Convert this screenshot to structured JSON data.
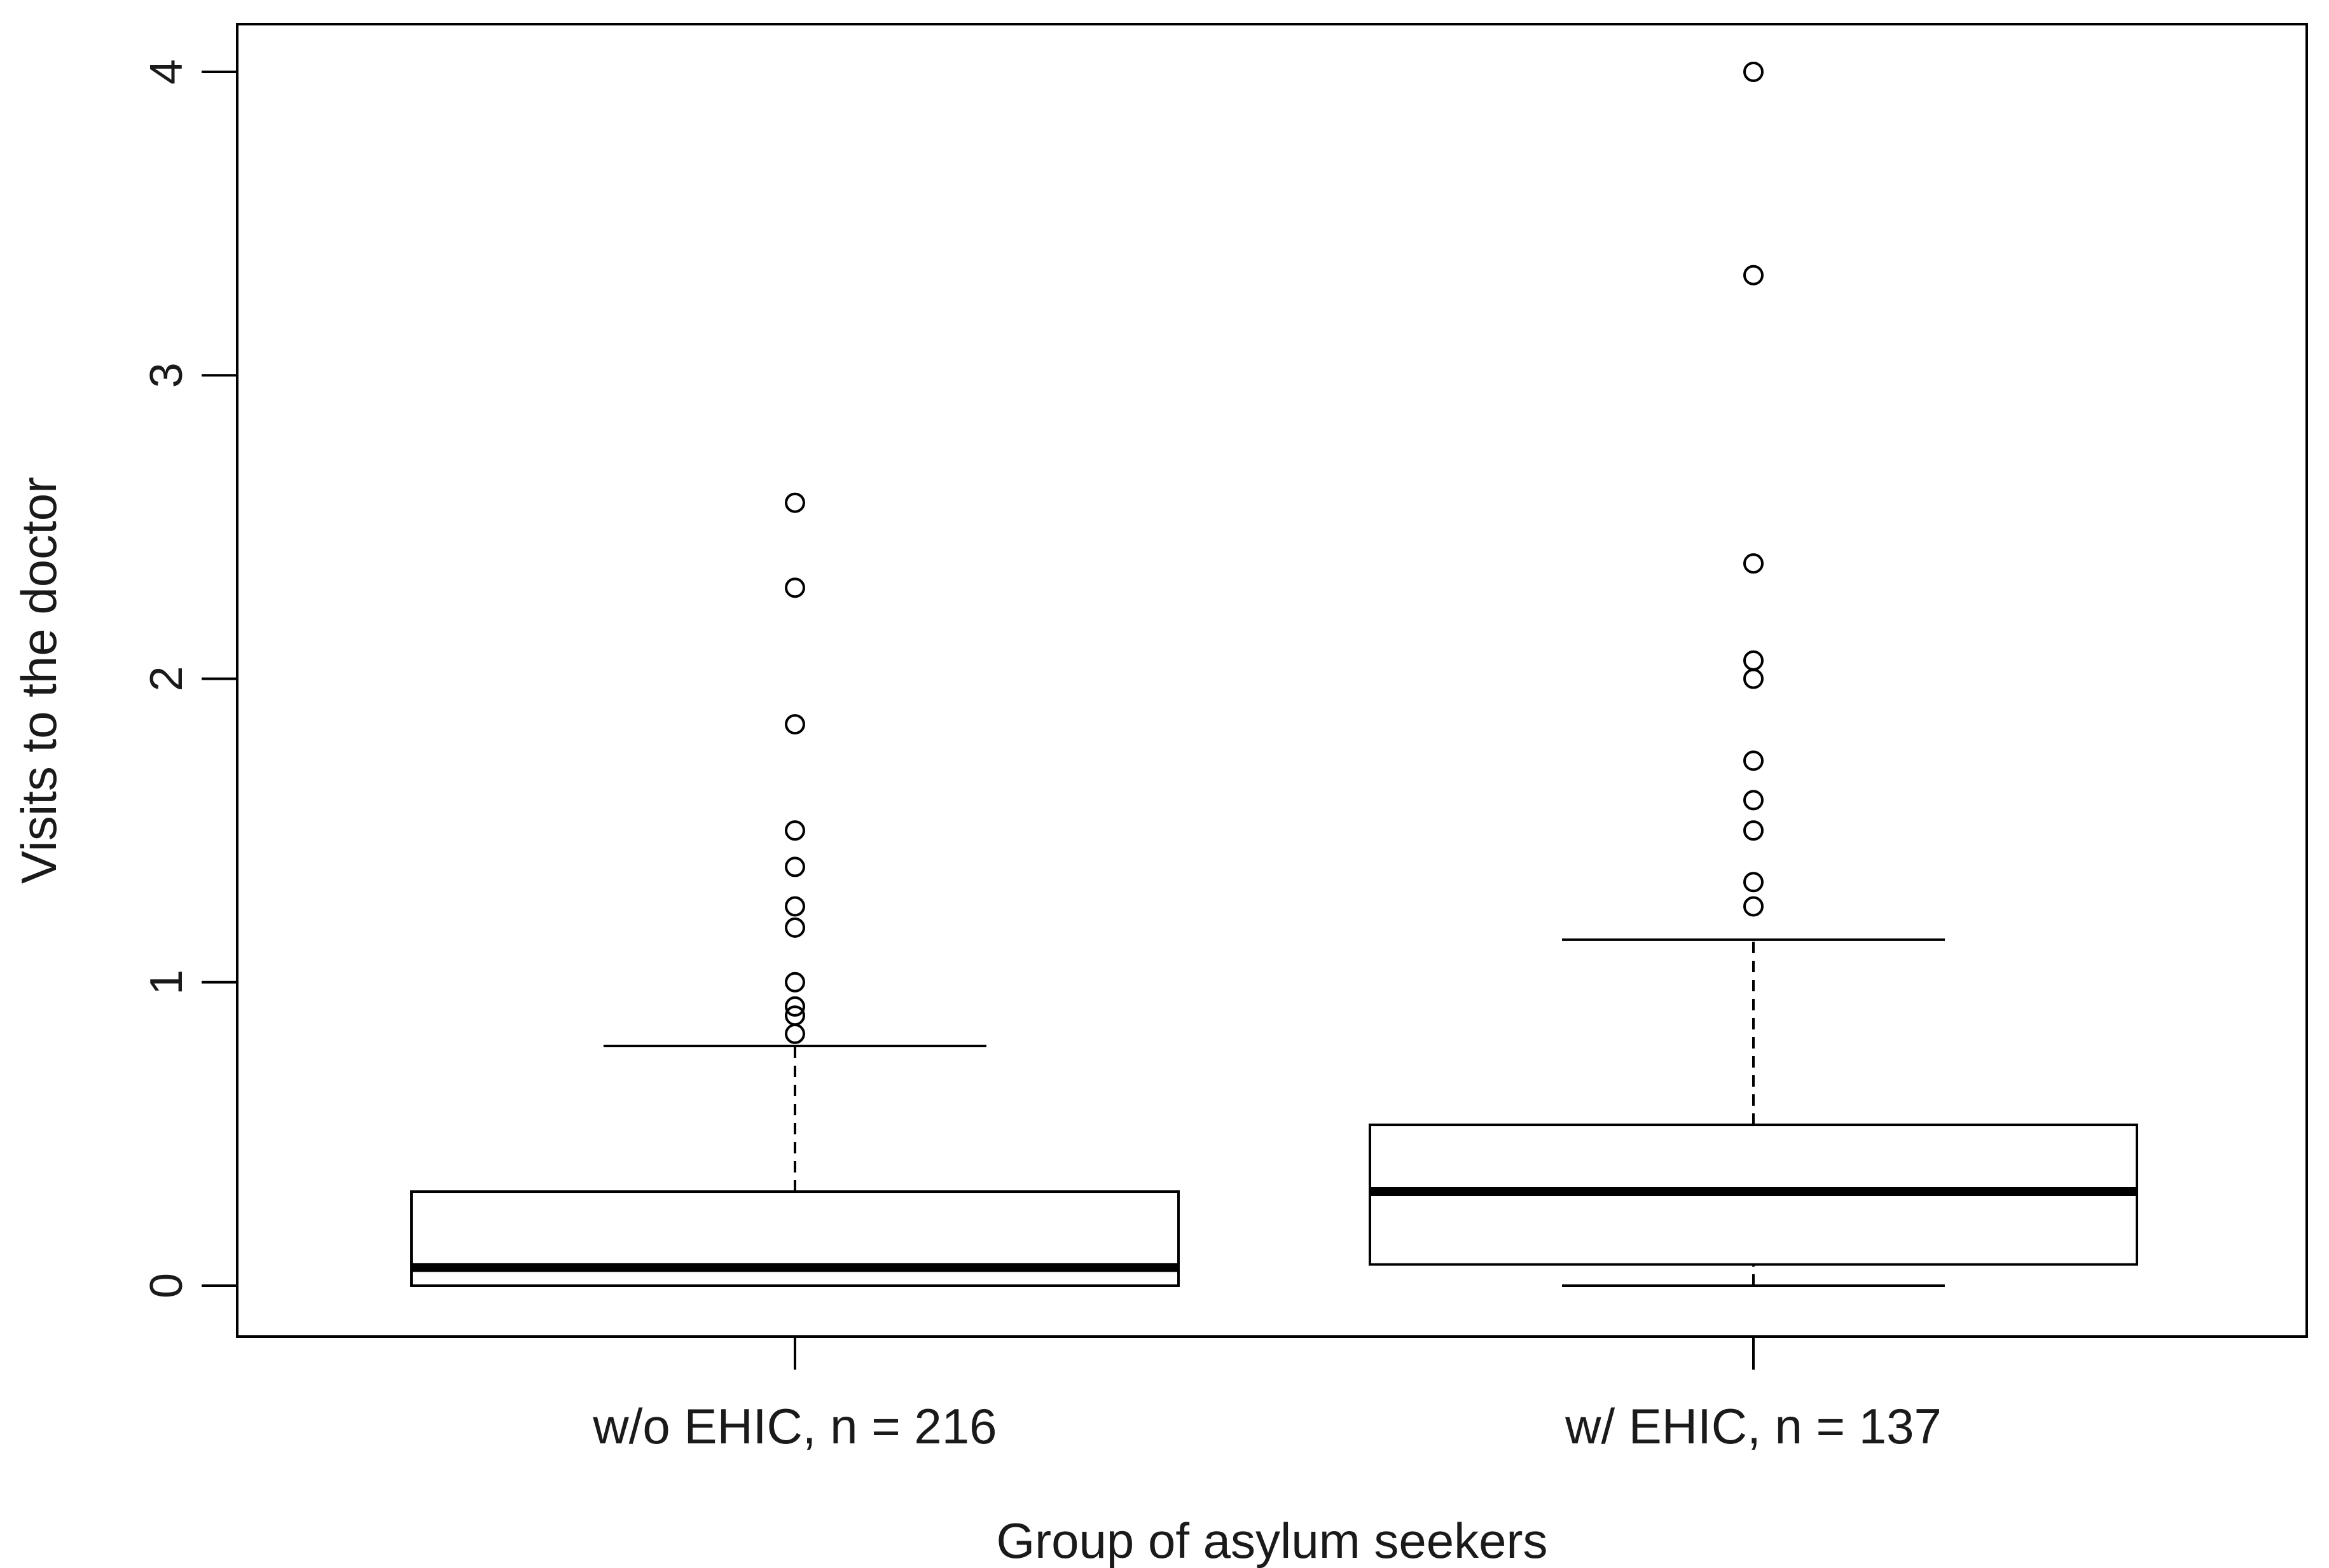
{
  "chart_data": {
    "type": "boxplot",
    "title": "",
    "xlabel": "Group of asylum seekers",
    "ylabel": "Visits to the doctor",
    "ylim": [
      -0.17,
      4.15
    ],
    "yticks": [
      0,
      1,
      2,
      3,
      4
    ],
    "grid": false,
    "legend": "none",
    "colors": {
      "line": "#000000",
      "box_fill": "#ffffff",
      "text": "#1a1a1a"
    },
    "groups": [
      {
        "label": "w/o EHIC, n = 216",
        "whisker_low": 0.0,
        "q1": 0.0,
        "median": 0.06,
        "q3": 0.31,
        "whisker_high": 0.79,
        "outliers": [
          0.83,
          0.89,
          0.92,
          1.0,
          1.18,
          1.25,
          1.38,
          1.5,
          1.85,
          2.3,
          2.58
        ]
      },
      {
        "label": "w/ EHIC, n = 137",
        "whisker_low": 0.0,
        "q1": 0.07,
        "median": 0.31,
        "q3": 0.53,
        "whisker_high": 1.14,
        "outliers": [
          1.25,
          1.33,
          1.5,
          1.6,
          1.73,
          2.0,
          2.06,
          2.38,
          3.33,
          4.0
        ]
      }
    ]
  }
}
